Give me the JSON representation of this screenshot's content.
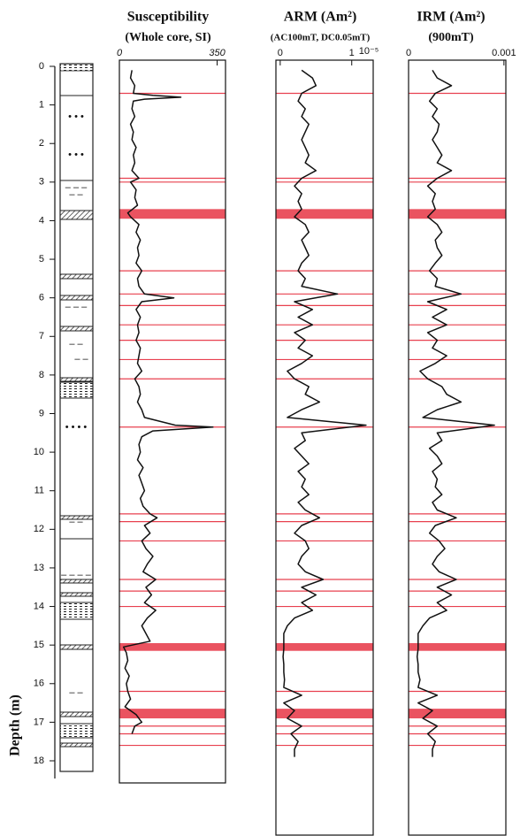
{
  "chart_data": {
    "type": "depth_profile",
    "ylabel": "Depth (m)",
    "ylim": [
      0,
      18
    ],
    "yticks": [
      0,
      1,
      2,
      3,
      4,
      5,
      6,
      7,
      8,
      9,
      10,
      11,
      12,
      13,
      14,
      15,
      16,
      17,
      18
    ],
    "event_color": "#e8404f",
    "event_lines": [
      0.7,
      2.9,
      3.0,
      5.3,
      5.9,
      6.2,
      6.7,
      7.1,
      7.6,
      8.1,
      9.35,
      11.6,
      11.8,
      12.3,
      13.3,
      13.6,
      14.0,
      16.2,
      17.1,
      17.3,
      17.6
    ],
    "event_bands": [
      [
        3.7,
        3.95
      ],
      [
        14.95,
        15.15
      ],
      [
        16.65,
        16.9
      ]
    ],
    "panels": [
      {
        "title": "Susceptibility",
        "subtitle": "(Whole core, SI)",
        "color": "#111111",
        "xlim": [
          0,
          380
        ],
        "xticks": [
          0,
          350
        ],
        "depth": [
          0.1,
          0.3,
          0.5,
          0.7,
          0.75,
          0.8,
          0.85,
          0.9,
          1.1,
          1.3,
          1.5,
          1.7,
          1.9,
          2.1,
          2.3,
          2.5,
          2.7,
          2.9,
          3.0,
          3.2,
          3.4,
          3.6,
          3.8,
          3.9,
          4.1,
          4.3,
          4.5,
          4.7,
          4.9,
          5.1,
          5.3,
          5.5,
          5.7,
          5.9,
          6.0,
          6.1,
          6.3,
          6.5,
          6.7,
          6.9,
          7.1,
          7.3,
          7.5,
          7.7,
          7.9,
          8.1,
          8.3,
          8.5,
          8.7,
          8.9,
          9.1,
          9.3,
          9.35,
          9.45,
          9.6,
          9.8,
          10.0,
          10.2,
          10.4,
          10.6,
          10.8,
          11.0,
          11.2,
          11.4,
          11.6,
          11.7,
          11.9,
          12.1,
          12.3,
          12.5,
          12.7,
          12.9,
          13.1,
          13.3,
          13.5,
          13.7,
          13.9,
          14.1,
          14.3,
          14.5,
          14.7,
          14.9,
          15.05,
          15.2,
          15.4,
          15.6,
          15.8,
          16.0,
          16.2,
          16.4,
          16.6,
          16.8,
          17.0,
          17.1,
          17.3
        ],
        "values": [
          45,
          40,
          55,
          50,
          120,
          220,
          90,
          50,
          45,
          55,
          40,
          50,
          45,
          60,
          50,
          55,
          45,
          70,
          40,
          60,
          55,
          65,
          30,
          40,
          70,
          60,
          75,
          65,
          70,
          60,
          80,
          65,
          70,
          90,
          195,
          80,
          60,
          75,
          65,
          70,
          60,
          75,
          70,
          65,
          80,
          55,
          70,
          75,
          65,
          80,
          90,
          200,
          335,
          120,
          80,
          70,
          75,
          65,
          85,
          70,
          80,
          90,
          75,
          85,
          110,
          135,
          90,
          110,
          80,
          95,
          120,
          100,
          85,
          130,
          95,
          115,
          90,
          130,
          100,
          80,
          95,
          110,
          15,
          25,
          30,
          20,
          35,
          25,
          30,
          40,
          20,
          60,
          80,
          55,
          45
        ]
      },
      {
        "title": "ARM (Am²)",
        "subtitle": "(AC100mT, DC0.05mT)",
        "color": "#111111",
        "xlim": [
          -0.06,
          1.3
        ],
        "xticks": [
          0,
          1
        ],
        "x_multiplier": "10⁻⁵",
        "depth": [
          0.1,
          0.3,
          0.5,
          0.7,
          0.9,
          1.1,
          1.3,
          1.5,
          1.7,
          1.9,
          2.1,
          2.3,
          2.5,
          2.7,
          2.9,
          3.1,
          3.3,
          3.5,
          3.7,
          3.9,
          4.1,
          4.3,
          4.5,
          4.7,
          4.9,
          5.1,
          5.3,
          5.5,
          5.7,
          5.9,
          6.1,
          6.3,
          6.5,
          6.7,
          6.9,
          7.1,
          7.3,
          7.5,
          7.7,
          7.9,
          8.1,
          8.3,
          8.5,
          8.7,
          8.9,
          9.1,
          9.3,
          9.5,
          9.7,
          9.9,
          10.1,
          10.3,
          10.5,
          10.7,
          10.9,
          11.1,
          11.3,
          11.5,
          11.7,
          11.9,
          12.1,
          12.3,
          12.5,
          12.7,
          12.9,
          13.1,
          13.3,
          13.5,
          13.7,
          13.9,
          14.1,
          14.3,
          14.5,
          14.7,
          14.9,
          15.1,
          15.3,
          15.5,
          15.7,
          15.9,
          16.1,
          16.3,
          16.5,
          16.7,
          16.9,
          17.1,
          17.3,
          17.5,
          17.7,
          17.9
        ],
        "values": [
          0.3,
          0.45,
          0.5,
          0.3,
          0.25,
          0.35,
          0.3,
          0.4,
          0.35,
          0.3,
          0.35,
          0.4,
          0.35,
          0.5,
          0.3,
          0.2,
          0.3,
          0.25,
          0.3,
          0.2,
          0.35,
          0.4,
          0.3,
          0.35,
          0.4,
          0.3,
          0.25,
          0.35,
          0.3,
          0.8,
          0.2,
          0.45,
          0.25,
          0.45,
          0.2,
          0.35,
          0.25,
          0.45,
          0.3,
          0.1,
          0.2,
          0.4,
          0.35,
          0.55,
          0.3,
          0.1,
          1.2,
          0.3,
          0.35,
          0.2,
          0.3,
          0.4,
          0.25,
          0.35,
          0.3,
          0.4,
          0.25,
          0.35,
          0.55,
          0.3,
          0.2,
          0.35,
          0.4,
          0.3,
          0.25,
          0.35,
          0.6,
          0.3,
          0.5,
          0.3,
          0.45,
          0.2,
          0.1,
          0.05,
          0.05,
          0.05,
          0.04,
          0.05,
          0.05,
          0.06,
          0.05,
          0.3,
          0.05,
          0.2,
          0.1,
          0.3,
          0.15,
          0.25,
          0.2,
          0.2
        ]
      },
      {
        "title": "IRM (Am²)",
        "subtitle": "(900mT)",
        "color": "#111111",
        "xlim": [
          0,
          0.00102
        ],
        "xticks": [
          0,
          0.001
        ],
        "depth": [
          0.1,
          0.3,
          0.5,
          0.7,
          0.9,
          1.1,
          1.3,
          1.5,
          1.7,
          1.9,
          2.1,
          2.3,
          2.5,
          2.7,
          2.9,
          3.1,
          3.3,
          3.5,
          3.7,
          3.9,
          4.1,
          4.3,
          4.5,
          4.7,
          4.9,
          5.1,
          5.3,
          5.5,
          5.7,
          5.9,
          6.1,
          6.3,
          6.5,
          6.7,
          6.9,
          7.1,
          7.3,
          7.5,
          7.7,
          7.9,
          8.1,
          8.3,
          8.5,
          8.7,
          8.9,
          9.1,
          9.3,
          9.5,
          9.7,
          9.9,
          10.1,
          10.3,
          10.5,
          10.7,
          10.9,
          11.1,
          11.3,
          11.5,
          11.7,
          11.9,
          12.1,
          12.3,
          12.5,
          12.7,
          12.9,
          13.1,
          13.3,
          13.5,
          13.7,
          13.9,
          14.1,
          14.3,
          14.5,
          14.7,
          14.9,
          15.1,
          15.3,
          15.5,
          15.7,
          15.9,
          16.1,
          16.3,
          16.5,
          16.7,
          16.9,
          17.1,
          17.3,
          17.5,
          17.7,
          17.9
        ],
        "values": [
          0.00025,
          0.0003,
          0.00045,
          0.00028,
          0.00022,
          0.0003,
          0.00025,
          0.00032,
          0.0003,
          0.00025,
          0.0003,
          0.00035,
          0.0003,
          0.00045,
          0.0003,
          0.0002,
          0.00028,
          0.00025,
          0.00028,
          0.0002,
          0.0003,
          0.00035,
          0.00028,
          0.0003,
          0.00035,
          0.00028,
          0.00022,
          0.0003,
          0.00028,
          0.00055,
          0.0002,
          0.0004,
          0.00025,
          0.0004,
          0.0002,
          0.0003,
          0.00025,
          0.0004,
          0.00028,
          0.00012,
          0.0002,
          0.00035,
          0.0004,
          0.00055,
          0.0003,
          0.00015,
          0.0009,
          0.0003,
          0.00035,
          0.00022,
          0.0003,
          0.00035,
          0.00025,
          0.0003,
          0.00028,
          0.00035,
          0.00025,
          0.0003,
          0.0005,
          0.00028,
          0.00022,
          0.00032,
          0.00038,
          0.0003,
          0.00025,
          0.00032,
          0.0005,
          0.0003,
          0.00045,
          0.0003,
          0.0004,
          0.00022,
          0.00015,
          0.0001,
          0.0001,
          0.0001,
          9e-05,
          0.0001,
          0.0001,
          0.00012,
          0.0001,
          0.0003,
          0.0001,
          0.00025,
          0.00015,
          0.0003,
          0.0002,
          0.00028,
          0.00025,
          0.00025
        ]
      }
    ]
  }
}
